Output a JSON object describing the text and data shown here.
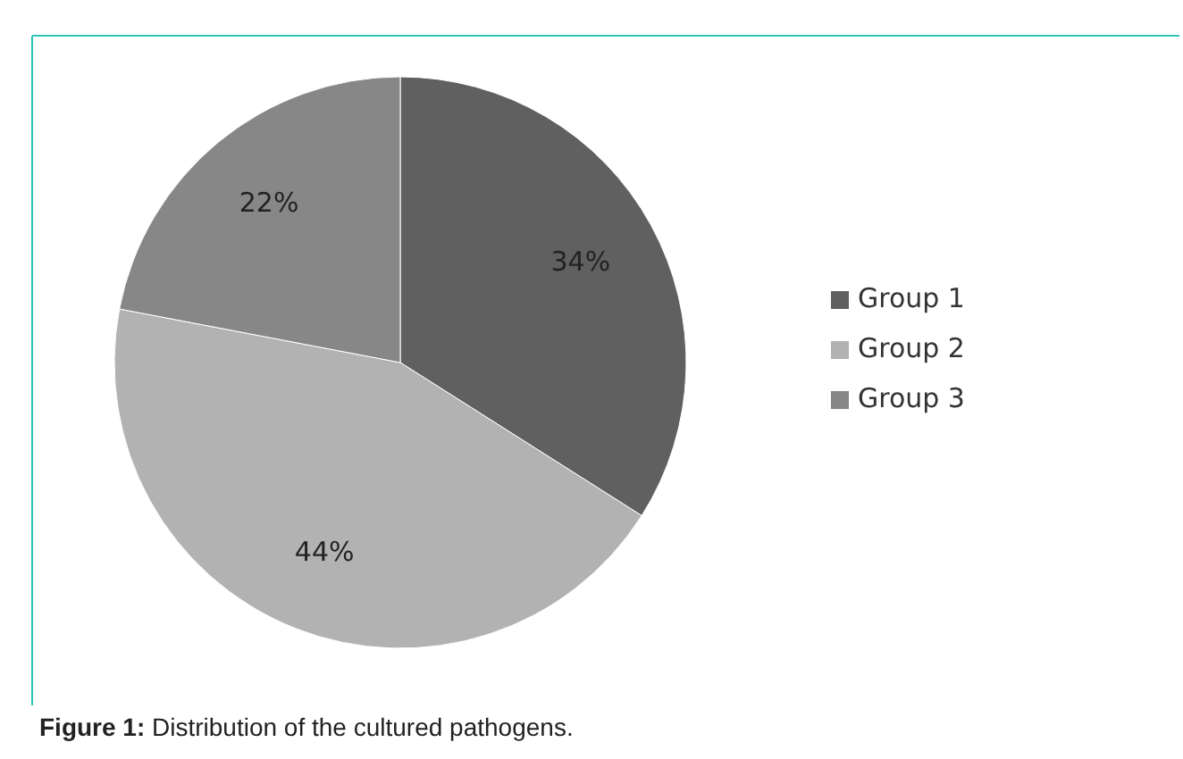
{
  "chart_data": {
    "type": "pie",
    "title": "Figure 1: Distribution of the cultured pathogens.",
    "categories": [
      "Group 1",
      "Group 2",
      "Group 3"
    ],
    "values": [
      34,
      44,
      22
    ],
    "colors": [
      "#606060",
      "#b2b2b2",
      "#878787"
    ],
    "value_labels": [
      "34%",
      "44%",
      "22%"
    ],
    "legend": "right"
  }
}
